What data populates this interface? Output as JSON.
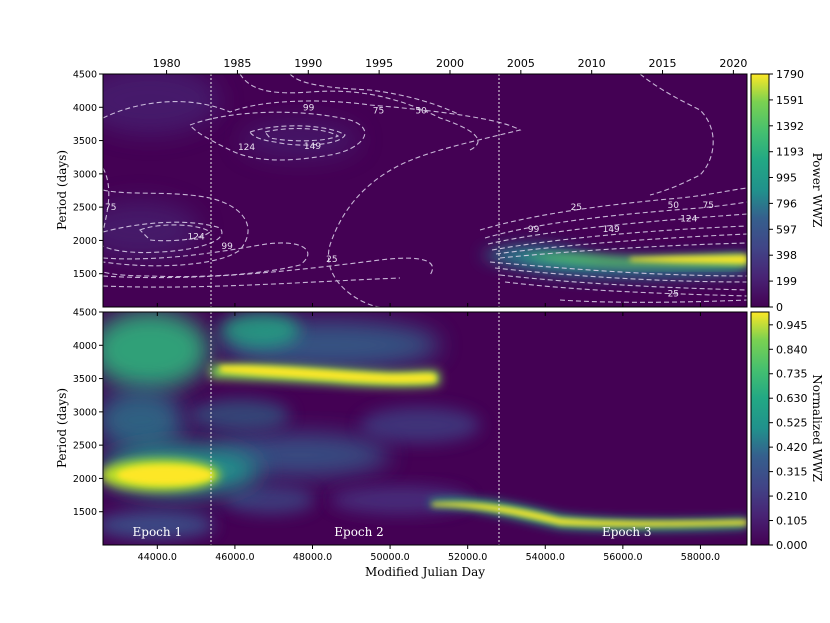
{
  "chart_data": [
    {
      "type": "heatmap",
      "panel": "top",
      "ylabel": "Period (days)",
      "colorbar_label": "Power WWZ",
      "top_axis_ticks": [
        "1980",
        "1985",
        "1990",
        "1995",
        "2000",
        "2005",
        "2010",
        "2015",
        "2020"
      ],
      "top_axis_values": [
        1980,
        1985,
        1990,
        1995,
        2000,
        2005,
        2010,
        2015,
        2020
      ],
      "yticks": [
        "1500",
        "2000",
        "2500",
        "3000",
        "3500",
        "4000",
        "4500"
      ],
      "ylim": [
        1000,
        4500
      ],
      "colorbar_ticks": [
        "0",
        "199",
        "398",
        "597",
        "796",
        "995",
        "1193",
        "1392",
        "1591",
        "1790"
      ],
      "colorbar_range": [
        0,
        1790
      ],
      "contour_labels": [
        {
          "text": "99",
          "mjd": 47900,
          "period": 4000
        },
        {
          "text": "75",
          "mjd": 49700,
          "period": 3950
        },
        {
          "text": "50",
          "mjd": 50800,
          "period": 3950
        },
        {
          "text": "124",
          "mjd": 46300,
          "period": 3400
        },
        {
          "text": "149",
          "mjd": 48000,
          "period": 3420
        },
        {
          "text": "75",
          "mjd": 42800,
          "period": 2500
        },
        {
          "text": "124",
          "mjd": 45000,
          "period": 2060
        },
        {
          "text": "99",
          "mjd": 45800,
          "period": 1920
        },
        {
          "text": "25",
          "mjd": 48500,
          "period": 1720
        },
        {
          "text": "25",
          "mjd": 54800,
          "period": 2500
        },
        {
          "text": "99",
          "mjd": 53700,
          "period": 2170
        },
        {
          "text": "149",
          "mjd": 55700,
          "period": 2170
        },
        {
          "text": "50",
          "mjd": 57300,
          "period": 2530
        },
        {
          "text": "75",
          "mjd": 58200,
          "period": 2530
        },
        {
          "text": "124",
          "mjd": 57700,
          "period": 2330
        },
        {
          "text": "25",
          "mjd": 57300,
          "period": 1200
        }
      ]
    },
    {
      "type": "heatmap",
      "panel": "bottom",
      "xlabel": "Modified Julian Day",
      "ylabel": "Period (days)",
      "colorbar_label": "Normalized WWZ",
      "xticks": [
        "44000.0",
        "46000.0",
        "48000.0",
        "50000.0",
        "52000.0",
        "54000.0",
        "56000.0",
        "58000.0"
      ],
      "xtick_values": [
        44000,
        46000,
        48000,
        50000,
        52000,
        54000,
        56000,
        58000
      ],
      "xlim": [
        42600,
        59200
      ],
      "yticks": [
        "1500",
        "2000",
        "2500",
        "3000",
        "3500",
        "4000",
        "4500"
      ],
      "ylim": [
        1000,
        4500
      ],
      "colorbar_ticks": [
        "0.000",
        "0.105",
        "0.210",
        "0.315",
        "0.420",
        "0.525",
        "0.630",
        "0.735",
        "0.840",
        "0.945"
      ],
      "colorbar_range": [
        0,
        1.0
      ],
      "epoch_boundaries_mjd": [
        45500,
        52900
      ],
      "epochs": [
        {
          "label": "Epoch 1",
          "mjd": 44000
        },
        {
          "label": "Epoch 2",
          "mjd": 49200
        },
        {
          "label": "Epoch 3",
          "mjd": 56100
        }
      ]
    }
  ]
}
